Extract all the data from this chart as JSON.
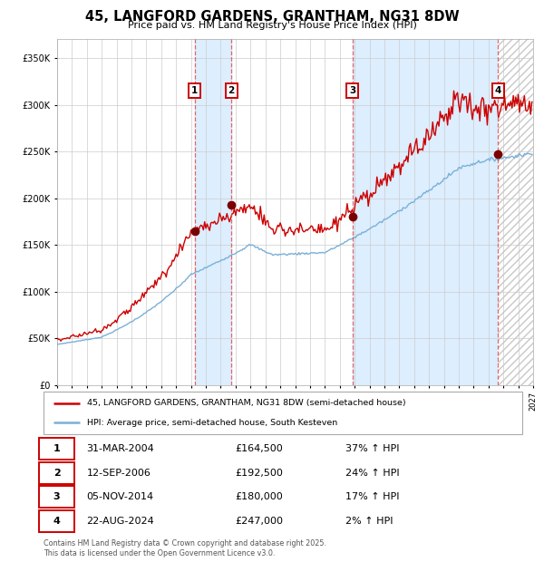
{
  "title": "45, LANGFORD GARDENS, GRANTHAM, NG31 8DW",
  "subtitle": "Price paid vs. HM Land Registry's House Price Index (HPI)",
  "legend_line1": "45, LANGFORD GARDENS, GRANTHAM, NG31 8DW (semi-detached house)",
  "legend_line2": "HPI: Average price, semi-detached house, South Kesteven",
  "footer1": "Contains HM Land Registry data © Crown copyright and database right 2025.",
  "footer2": "This data is licensed under the Open Government Licence v3.0.",
  "transactions": [
    {
      "num": 1,
      "date": "31-MAR-2004",
      "price": "£164,500",
      "hpi": "37% ↑ HPI",
      "year": 2004.25
    },
    {
      "num": 2,
      "date": "12-SEP-2006",
      "price": "£192,500",
      "hpi": "24% ↑ HPI",
      "year": 2006.71
    },
    {
      "num": 3,
      "date": "05-NOV-2014",
      "price": "£180,000",
      "hpi": "17% ↑ HPI",
      "year": 2014.84
    },
    {
      "num": 4,
      "date": "22-AUG-2024",
      "price": "£247,000",
      "hpi": "2% ↑ HPI",
      "year": 2024.64
    }
  ],
  "hpi_color": "#7ab0d8",
  "price_color": "#cc0000",
  "dot_color": "#7a0000",
  "vline_color": "#e05050",
  "shade_color": "#ddeeff",
  "grid_color": "#cccccc",
  "ylim": [
    0,
    370000
  ],
  "xlim_start": 1995,
  "xlim_end": 2027,
  "yticks": [
    0,
    50000,
    100000,
    150000,
    200000,
    250000,
    300000,
    350000
  ]
}
